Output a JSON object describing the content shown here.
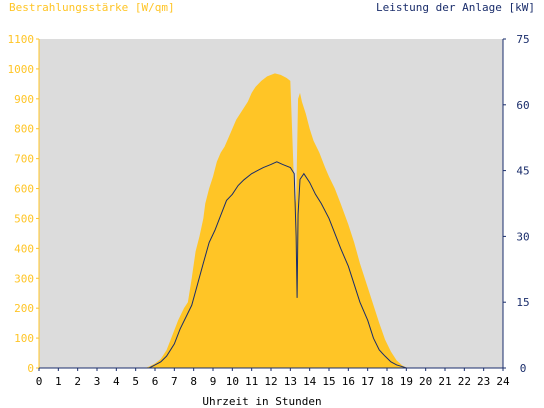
{
  "chart_data": {
    "type": "area",
    "ylabel_left": "Bestrahlungsstärke [W/qm]",
    "ylabel_right": "Leistung der Anlage [kW]",
    "xlabel": "Uhrzeit in Stunden",
    "xlim": [
      0,
      24
    ],
    "ylim_left": [
      0,
      1100
    ],
    "ylim_right": [
      0,
      75
    ],
    "x_ticks": [
      "0",
      "1",
      "2",
      "3",
      "4",
      "5",
      "6",
      "7",
      "8",
      "9",
      "10",
      "11",
      "12",
      "13",
      "14",
      "15",
      "16",
      "17",
      "18",
      "19",
      "20",
      "21",
      "22",
      "23",
      "24"
    ],
    "y_ticks_left": [
      "0",
      "100",
      "200",
      "300",
      "400",
      "500",
      "600",
      "700",
      "800",
      "900",
      "1000",
      "1100"
    ],
    "y_ticks_right": [
      "0",
      "15",
      "30",
      "45",
      "60",
      "75"
    ],
    "grid": false,
    "colors": {
      "irradiance": "#ffc526",
      "power": "#1a2d6b",
      "plot_bg": "#dcdcdc"
    },
    "series": [
      {
        "name": "Bestrahlungsstärke [W/qm]",
        "axis": "left",
        "x": [
          0,
          5.5,
          5.7,
          6,
          6.3,
          6.6,
          6.9,
          7.2,
          7.5,
          7.7,
          7.9,
          8.1,
          8.3,
          8.5,
          8.6,
          8.8,
          9,
          9.2,
          9.4,
          9.6,
          9.8,
          10,
          10.2,
          10.5,
          10.8,
          11,
          11.2,
          11.5,
          11.8,
          12,
          12.2,
          12.5,
          12.8,
          13,
          13.2,
          13.3,
          13.4,
          13.5,
          13.6,
          13.8,
          14,
          14.2,
          14.5,
          14.8,
          15,
          15.3,
          15.6,
          16,
          16.3,
          16.6,
          17,
          17.3,
          17.6,
          17.9,
          18.2,
          18.5,
          18.8,
          19,
          19.2,
          24
        ],
        "values": [
          0,
          0,
          5,
          15,
          30,
          60,
          110,
          160,
          200,
          220,
          300,
          390,
          440,
          500,
          550,
          600,
          640,
          690,
          720,
          740,
          770,
          800,
          830,
          860,
          890,
          920,
          940,
          960,
          975,
          980,
          985,
          980,
          970,
          960,
          600,
          550,
          900,
          920,
          890,
          850,
          800,
          760,
          720,
          670,
          640,
          600,
          550,
          480,
          420,
          350,
          270,
          210,
          150,
          95,
          55,
          25,
          8,
          2,
          0,
          0
        ]
      },
      {
        "name": "Leistung der Anlage [kW]",
        "axis": "right",
        "x": [
          0,
          5.7,
          6,
          6.3,
          6.6,
          7,
          7.3,
          7.6,
          7.9,
          8.2,
          8.5,
          8.8,
          9.1,
          9.4,
          9.7,
          10,
          10.3,
          10.6,
          11,
          11.3,
          11.6,
          12,
          12.3,
          12.6,
          13,
          13.2,
          13.3,
          13.35,
          13.4,
          13.5,
          13.7,
          14,
          14.3,
          14.6,
          15,
          15.3,
          15.6,
          16,
          16.3,
          16.6,
          17,
          17.3,
          17.6,
          17.9,
          18.2,
          18.5,
          18.8,
          19,
          24
        ],
        "values": [
          0,
          0,
          0.7,
          1.4,
          2.7,
          5.5,
          8.9,
          11.6,
          14.3,
          19.1,
          23.9,
          28.6,
          31.4,
          34.8,
          38.2,
          39.6,
          41.6,
          42.9,
          44.3,
          45,
          45.7,
          46.4,
          47,
          46.4,
          45.7,
          44.3,
          30,
          16,
          35,
          43,
          44.3,
          42.3,
          39.6,
          37.5,
          34.1,
          30.7,
          27.3,
          23.2,
          19.1,
          15,
          10.9,
          6.8,
          4.1,
          2.7,
          1.4,
          0.7,
          0.3,
          0,
          0
        ]
      }
    ]
  }
}
